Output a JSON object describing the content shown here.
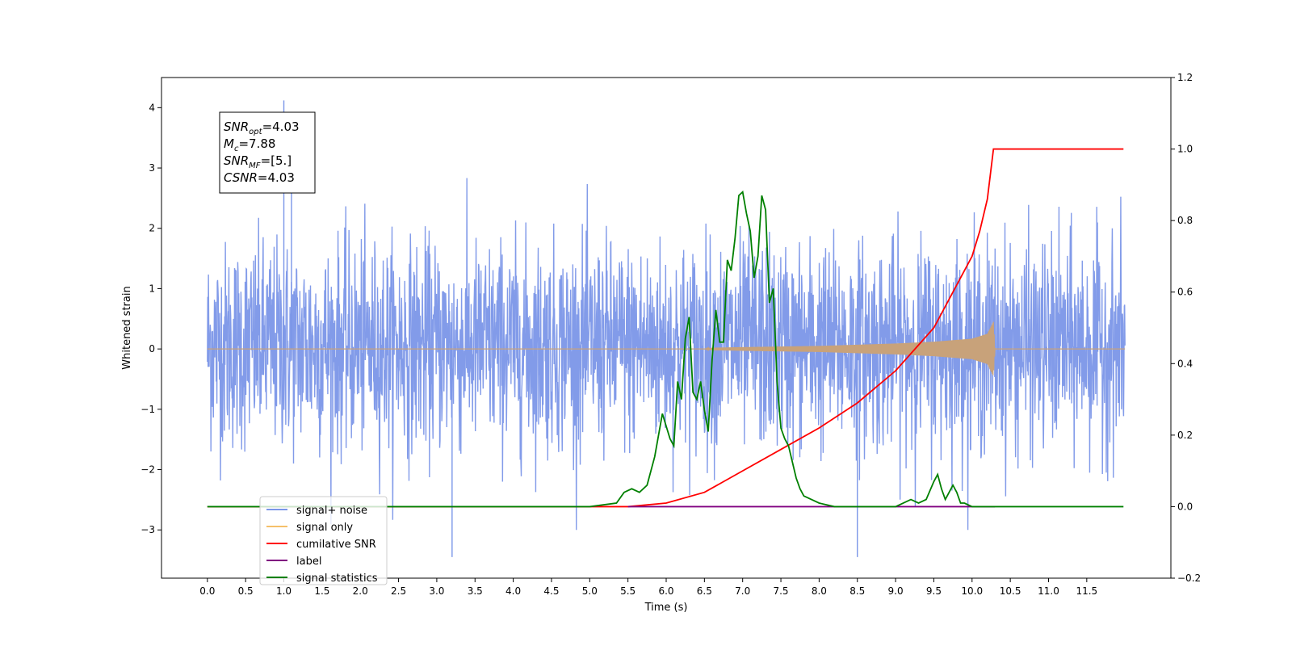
{
  "chart_data": {
    "type": "line",
    "xlabel": "Time (s)",
    "ylabel": "Whitened strain",
    "xlim": [
      -0.6,
      12.6
    ],
    "ylim": [
      -3.8,
      4.5
    ],
    "y2lim": [
      -0.2,
      1.2
    ],
    "x_ticks": [
      0.0,
      0.5,
      1.0,
      1.5,
      2.0,
      2.5,
      3.0,
      3.5,
      4.0,
      4.5,
      5.0,
      5.5,
      6.0,
      6.5,
      7.0,
      7.5,
      8.0,
      8.5,
      9.0,
      9.5,
      10.0,
      10.5,
      11.0,
      11.5
    ],
    "x_tick_labels": [
      "0.0",
      "0.5",
      "1.0",
      "1.5",
      "2.0",
      "2.5",
      "3.0",
      "3.5",
      "4.0",
      "4.5",
      "5.0",
      "5.5",
      "6.0",
      "6.5",
      "7.0",
      "7.5",
      "8.0",
      "8.5",
      "9.0",
      "9.5",
      "10.0",
      "10.5",
      "11.0",
      "11.5"
    ],
    "y_ticks": [
      -3,
      -2,
      -1,
      0,
      1,
      2,
      3,
      4
    ],
    "y_tick_labels": [
      "−3",
      "−2",
      "−1",
      "0",
      "1",
      "2",
      "3",
      "4"
    ],
    "y2_ticks": [
      -0.2,
      0.0,
      0.2,
      0.4,
      0.6,
      0.8,
      1.0,
      1.2
    ],
    "y2_tick_labels": [
      "−0.2",
      "0.0",
      "0.2",
      "0.4",
      "0.6",
      "0.8",
      "1.0",
      "1.2"
    ],
    "grid": false,
    "legend_position": "lower-left",
    "annotation": {
      "lines": [
        {
          "sym": "SNR",
          "sub": "opt",
          "val": "=4.03"
        },
        {
          "sym": "M",
          "sub": "c",
          "val": "=7.88"
        },
        {
          "sym": "SNR",
          "sub": "MF",
          "val": "=[5.]"
        },
        {
          "sym": "CSNR",
          "sub": "",
          "val": "=4.03"
        }
      ]
    },
    "legend": [
      {
        "label": "signal+ noise",
        "color": "#7b96e8"
      },
      {
        "label": "signal only",
        "color": "#f5c06a"
      },
      {
        "label": "cumilative SNR",
        "color": "#ff0000"
      },
      {
        "label": "label",
        "color": "#800080"
      },
      {
        "label": "signal statistics",
        "color": "#008000"
      }
    ],
    "series": [
      {
        "name": "signal+ noise",
        "axis": "left",
        "color": "#7b96e8",
        "kind": "noise",
        "x_range": [
          0.0,
          12.0
        ],
        "typical_envelope": [
          -1.5,
          1.6
        ],
        "max": 4.12,
        "min": -3.45
      },
      {
        "name": "signal only",
        "axis": "left",
        "color": "#c8a27a",
        "kind": "chirp",
        "x_range": [
          0.0,
          12.0
        ],
        "envelope_points": [
          [
            0.0,
            0.0
          ],
          [
            6.5,
            0.0
          ],
          [
            6.6,
            0.02
          ],
          [
            7.0,
            0.03
          ],
          [
            7.5,
            0.04
          ],
          [
            8.0,
            0.05
          ],
          [
            8.5,
            0.07
          ],
          [
            9.0,
            0.09
          ],
          [
            9.5,
            0.12
          ],
          [
            10.0,
            0.17
          ],
          [
            10.2,
            0.25
          ],
          [
            10.28,
            0.45
          ],
          [
            10.3,
            0.0
          ],
          [
            12.0,
            0.0
          ]
        ]
      },
      {
        "name": "cumilative SNR",
        "axis": "right",
        "color": "#ff0000",
        "x": [
          0.0,
          5.5,
          6.0,
          6.5,
          7.0,
          7.5,
          8.0,
          8.5,
          9.0,
          9.5,
          10.0,
          10.1,
          10.2,
          10.28,
          10.3,
          11.5,
          11.98
        ],
        "values": [
          0.0,
          0.0,
          0.01,
          0.04,
          0.1,
          0.16,
          0.22,
          0.29,
          0.38,
          0.5,
          0.7,
          0.77,
          0.86,
          1.0,
          1.0,
          1.0,
          1.0
        ]
      },
      {
        "name": "label",
        "axis": "right",
        "color": "#800080",
        "x": [
          5.5,
          10.3
        ],
        "values": [
          0.0,
          0.0
        ]
      },
      {
        "name": "signal statistics",
        "axis": "right",
        "color": "#008000",
        "x": [
          0.0,
          3.5,
          4.5,
          5.0,
          5.35,
          5.45,
          5.55,
          5.65,
          5.75,
          5.85,
          5.95,
          6.05,
          6.1,
          6.15,
          6.2,
          6.25,
          6.3,
          6.35,
          6.4,
          6.45,
          6.5,
          6.55,
          6.6,
          6.65,
          6.7,
          6.75,
          6.8,
          6.85,
          6.9,
          6.95,
          7.0,
          7.05,
          7.1,
          7.15,
          7.2,
          7.25,
          7.3,
          7.35,
          7.4,
          7.45,
          7.5,
          7.55,
          7.6,
          7.7,
          7.75,
          7.8,
          7.9,
          8.0,
          8.2,
          8.5,
          9.0,
          9.2,
          9.3,
          9.4,
          9.5,
          9.55,
          9.6,
          9.65,
          9.7,
          9.75,
          9.8,
          9.85,
          9.9,
          10.0,
          10.3,
          10.6,
          11.0,
          11.5,
          11.98
        ],
        "values": [
          0.0,
          0.0,
          0.0,
          0.0,
          0.01,
          0.04,
          0.05,
          0.04,
          0.06,
          0.14,
          0.26,
          0.19,
          0.17,
          0.35,
          0.3,
          0.47,
          0.53,
          0.32,
          0.3,
          0.35,
          0.27,
          0.21,
          0.41,
          0.55,
          0.46,
          0.46,
          0.69,
          0.66,
          0.75,
          0.87,
          0.88,
          0.82,
          0.77,
          0.64,
          0.7,
          0.87,
          0.83,
          0.57,
          0.61,
          0.35,
          0.22,
          0.19,
          0.17,
          0.08,
          0.05,
          0.03,
          0.02,
          0.01,
          0.0,
          0.0,
          0.0,
          0.02,
          0.01,
          0.02,
          0.07,
          0.09,
          0.05,
          0.02,
          0.04,
          0.06,
          0.04,
          0.01,
          0.01,
          0.0,
          0.0,
          0.0,
          0.0,
          0.0,
          0.0
        ]
      }
    ]
  }
}
